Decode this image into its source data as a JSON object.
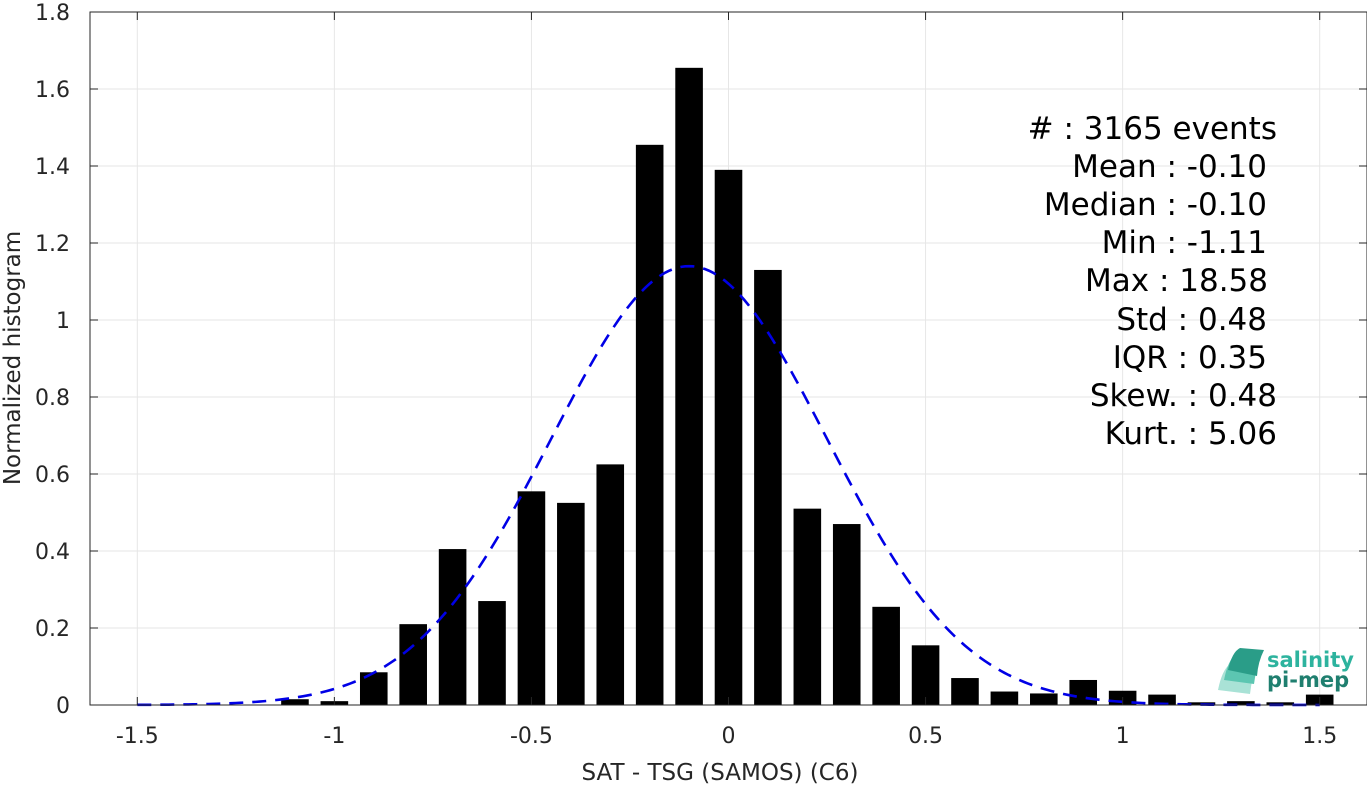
{
  "chart_data": {
    "type": "bar",
    "xlabel": "SAT - TSG (SAMOS) (C6)",
    "ylabel": "Normalized histogram",
    "xlim": [
      -1.62,
      1.62
    ],
    "ylim": [
      0,
      1.8
    ],
    "xticks": [
      -1.5,
      -1,
      -0.5,
      0,
      0.5,
      1,
      1.5
    ],
    "xtick_labels": [
      "-1.5",
      "-1",
      "-0.5",
      "0",
      "0.5",
      "1",
      "1.5"
    ],
    "yticks": [
      0,
      0.2,
      0.4,
      0.6,
      0.8,
      1,
      1.2,
      1.4,
      1.6,
      1.8
    ],
    "ytick_labels": [
      "0",
      "0.2",
      "0.4",
      "0.6",
      "0.8",
      "1",
      "1.2",
      "1.4",
      "1.6",
      "1.8"
    ],
    "grid": true,
    "bar_color": "#000000",
    "bar_width": 0.07,
    "bins": [
      -1.1,
      -1.0,
      -0.9,
      -0.8,
      -0.7,
      -0.6,
      -0.5,
      -0.4,
      -0.3,
      -0.2,
      -0.1,
      0.0,
      0.1,
      0.2,
      0.3,
      0.4,
      0.5,
      0.6,
      0.7,
      0.8,
      0.9,
      1.0,
      1.1,
      1.2,
      1.3,
      1.4,
      1.5
    ],
    "values": [
      0.015,
      0.01,
      0.085,
      0.21,
      0.405,
      0.27,
      0.555,
      0.525,
      0.625,
      1.455,
      1.655,
      1.39,
      1.13,
      0.51,
      0.47,
      0.255,
      0.155,
      0.07,
      0.035,
      0.03,
      0.065,
      0.037,
      0.027,
      0.007,
      0.01,
      0.007,
      0.027
    ],
    "fit_curve": {
      "type": "gaussian",
      "mean": -0.1,
      "std": 0.35,
      "color": "#0000e6",
      "style": "dashed"
    },
    "stats": [
      "#  : 3165 events",
      "Mean : -0.10",
      "Median : -0.10",
      "Min : -1.11",
      "Max : 18.58",
      "Std : 0.48",
      "IQR : 0.35",
      "Skew. : 0.48",
      "Kurt. : 5.06"
    ]
  },
  "logo": {
    "line1": "salinity",
    "line2": "pi-mep",
    "color1": "#2db39e",
    "color2": "#1f7f6f"
  }
}
